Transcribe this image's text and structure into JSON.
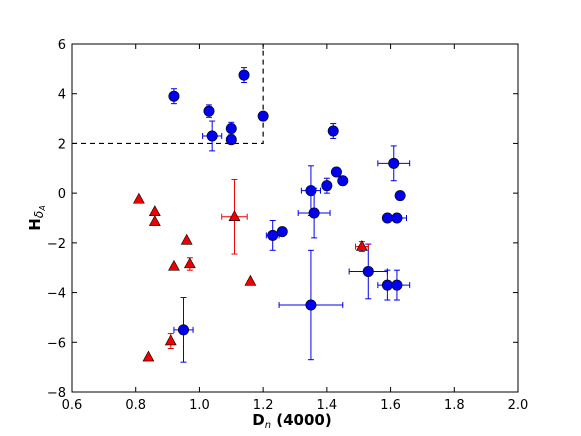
{
  "chart_data": {
    "type": "scatter",
    "title": "",
    "xlabel": "D",
    "xlabel_sub": "n",
    "xlabel_rest": " (4000)",
    "ylabel": "H",
    "ylabel_sub": "δ",
    "ylabel_subsub": "A",
    "xlim": [
      0.6,
      2.0
    ],
    "ylim": [
      -8,
      6
    ],
    "xticks": [
      0.6,
      0.8,
      1.0,
      1.2,
      1.4,
      1.6,
      1.8,
      2.0
    ],
    "xtick_labels": [
      "0.6",
      "0.8",
      "1.0",
      "1.2",
      "1.4",
      "1.6",
      "1.8",
      "2.0"
    ],
    "yticks": [
      -8,
      -6,
      -4,
      -2,
      0,
      2,
      4,
      6
    ],
    "ytick_labels": [
      "−8",
      "−6",
      "−4",
      "−2",
      "0",
      "2",
      "4",
      "6"
    ],
    "grid": false,
    "colors": {
      "blue": "#0000ee",
      "red": "#ee0000",
      "axis": "#000000"
    },
    "selection_box": {
      "x_max": 1.2,
      "y_min": 2,
      "style": "dashed"
    },
    "series": [
      {
        "marker": "circle",
        "color": "#0000ee",
        "points": [
          {
            "x": 0.92,
            "y": 3.9,
            "yerr": 0.3,
            "xerr": 0
          },
          {
            "x": 1.03,
            "y": 3.3,
            "yerr": 0.25,
            "xerr": 0
          },
          {
            "x": 1.04,
            "y": 2.3,
            "yerr": 0.6,
            "xerr": 0.03
          },
          {
            "x": 1.1,
            "y": 2.6,
            "yerr": 0.25,
            "xerr": 0
          },
          {
            "x": 1.1,
            "y": 2.15,
            "yerr": 0.15,
            "xerr": 0
          },
          {
            "x": 1.14,
            "y": 4.75,
            "yerr": 0.3,
            "xerr": 0
          },
          {
            "x": 1.2,
            "y": 3.1,
            "yerr": 0,
            "xerr": 0
          },
          {
            "x": 1.42,
            "y": 2.5,
            "yerr": 0.3,
            "xerr": 0
          },
          {
            "x": 1.35,
            "y": 0.1,
            "yerr": 1.0,
            "xerr": 0.03
          },
          {
            "x": 1.4,
            "y": 0.3,
            "yerr": 0.3,
            "xerr": 0
          },
          {
            "x": 1.43,
            "y": 0.85,
            "yerr": 0,
            "xerr": 0
          },
          {
            "x": 1.45,
            "y": 0.5,
            "yerr": 0,
            "xerr": 0
          },
          {
            "x": 1.36,
            "y": -0.8,
            "yerr": 1.0,
            "xerr": 0.05
          },
          {
            "x": 1.61,
            "y": 1.2,
            "yerr": 0.7,
            "xerr": 0.05
          },
          {
            "x": 1.63,
            "y": -0.1,
            "yerr": 0,
            "xerr": 0
          },
          {
            "x": 1.59,
            "y": -1.0,
            "yerr": 0,
            "xerr": 0
          },
          {
            "x": 1.62,
            "y": -1.0,
            "yerr": 0,
            "xerr": 0.03
          },
          {
            "x": 1.23,
            "y": -1.7,
            "yerr": 0.6,
            "xerr": 0.02
          },
          {
            "x": 1.26,
            "y": -1.55,
            "yerr": 0,
            "xerr": 0
          },
          {
            "x": 1.53,
            "y": -3.15,
            "yerr": 1.1,
            "xerr": 0.06
          },
          {
            "x": 1.59,
            "y": -3.7,
            "yerr": 0.6,
            "xerr": 0.03
          },
          {
            "x": 1.62,
            "y": -3.7,
            "yerr": 0.6,
            "xerr": 0.04
          },
          {
            "x": 1.35,
            "y": -4.5,
            "yerr": 2.2,
            "xerr": 0.1
          },
          {
            "x": 0.95,
            "y": -5.5,
            "yerr": 1.3,
            "xerr": 0.03
          }
        ]
      },
      {
        "marker": "triangle",
        "color": "#ee0000",
        "points": [
          {
            "x": 0.81,
            "y": -0.25,
            "yerr": 0,
            "xerr": 0
          },
          {
            "x": 0.86,
            "y": -0.75,
            "yerr": 0,
            "xerr": 0
          },
          {
            "x": 0.86,
            "y": -1.15,
            "yerr": 0,
            "xerr": 0
          },
          {
            "x": 0.96,
            "y": -1.9,
            "yerr": 0,
            "xerr": 0
          },
          {
            "x": 0.92,
            "y": -2.95,
            "yerr": 0,
            "xerr": 0
          },
          {
            "x": 0.97,
            "y": -2.85,
            "yerr": 0.25,
            "xerr": 0
          },
          {
            "x": 1.11,
            "y": -0.95,
            "yerr": 1.5,
            "xerr": 0.04
          },
          {
            "x": 1.16,
            "y": -3.55,
            "yerr": 0,
            "xerr": 0
          },
          {
            "x": 1.51,
            "y": -2.15,
            "yerr": 0.2,
            "xerr": 0.02
          },
          {
            "x": 0.91,
            "y": -5.95,
            "yerr": 0.3,
            "xerr": 0
          },
          {
            "x": 0.84,
            "y": -6.6,
            "yerr": 0,
            "xerr": 0
          }
        ]
      }
    ]
  }
}
